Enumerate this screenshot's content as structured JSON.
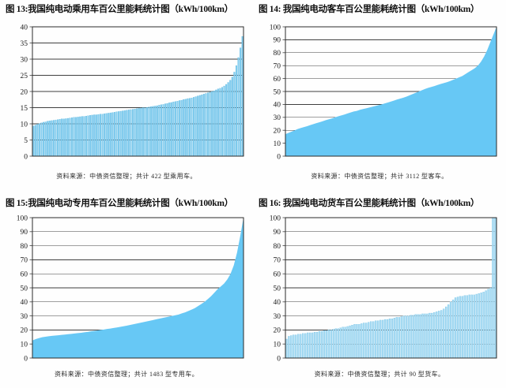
{
  "colors": {
    "grid": "#3f3f3f",
    "border": "#2b2b2b",
    "tick_text": "#1a1a1a"
  },
  "chart_data": [
    {
      "type": "bar",
      "title": "图 13:我国纯电动乘用车百公里能耗统计图（kWh/100km）",
      "source_note": "资料来源：中债资信整理；共计 422 型乘用车。",
      "total_models": 422,
      "unit": "kWh/100km",
      "xlabel": "",
      "ylabel": "kWh/100km",
      "ylim": [
        0,
        40
      ],
      "ytick_step": 5,
      "grid": true,
      "fill": "#85CEF0",
      "stroke": "#54B5E0",
      "values": [
        9.3,
        9.6,
        9.9,
        10.1,
        10.3,
        10.5,
        10.6,
        10.8,
        10.9,
        11,
        11.1,
        11.2,
        11.3,
        11.4,
        11.5,
        11.5,
        11.6,
        11.7,
        11.8,
        11.9,
        12,
        12,
        12.1,
        12.2,
        12.3,
        12.3,
        12.4,
        12.5,
        12.6,
        12.7,
        12.8,
        12.8,
        12.9,
        13,
        13,
        13.1,
        13.2,
        13.3,
        13.4,
        13.5,
        13.6,
        13.7,
        13.8,
        13.9,
        14,
        14.1,
        14.2,
        14.3,
        14.4,
        14.5,
        14.6,
        14.7,
        14.8,
        14.9,
        15,
        15,
        15.1,
        15.2,
        15.3,
        15.4,
        15.5,
        15.6,
        15.8,
        15.9,
        16,
        16.2,
        16.3,
        16.5,
        16.6,
        16.8,
        16.9,
        17,
        17.2,
        17.3,
        17.5,
        17.6,
        17.8,
        17.9,
        18,
        18.2,
        18.4,
        18.6,
        18.8,
        19,
        19.2,
        19.4,
        19.6,
        19.8,
        20,
        20.2,
        20.5,
        20.8,
        21,
        21.3,
        21.7,
        22.2,
        22.8,
        23.5,
        24.5,
        26,
        28,
        30.5,
        33.5,
        37
      ]
    },
    {
      "type": "area",
      "title": "图 14: 我国纯电动客车百公里能耗统计图（kWh/100km）",
      "source_note": "资料来源：中债资信整理；共计 3112 型客车。",
      "total_models": 3112,
      "unit": "kWh/100km",
      "xlabel": "",
      "ylabel": "kWh/100km",
      "ylim": [
        0,
        100
      ],
      "ytick_step": 10,
      "grid": true,
      "fill": "#67C8F5",
      "values": [
        17,
        18,
        19,
        20,
        21,
        21.8,
        22.5,
        23.2,
        24,
        24.8,
        25.5,
        26.2,
        27,
        27.8,
        28.5,
        29.2,
        30,
        30.8,
        31.5,
        32.2,
        33,
        33.8,
        34.5,
        35,
        35.8,
        36.4,
        37,
        37.6,
        38.2,
        38.8,
        39.4,
        40,
        40.8,
        41.5,
        42.2,
        43,
        43.8,
        44.5,
        45.2,
        46,
        47,
        48,
        49,
        50,
        51,
        52,
        52.8,
        53.5,
        54.2,
        55,
        55.8,
        56.5,
        57.2,
        58,
        59,
        60,
        61,
        62,
        63.5,
        65,
        66.5,
        68,
        70,
        73,
        77,
        82,
        88,
        94,
        100
      ]
    },
    {
      "type": "area",
      "title": "图 15:我国纯电动专用车百公里能耗统计图（kWh/100km）",
      "source_note": "资料来源：中债资信整理；共计 1483 型专用车。",
      "total_models": 1483,
      "unit": "kWh/100km",
      "xlabel": "",
      "ylabel": "kWh/100km",
      "ylim": [
        0,
        100
      ],
      "ytick_step": 10,
      "grid": true,
      "fill": "#67C8F5",
      "values": [
        12.5,
        13.5,
        14.2,
        14.8,
        15.2,
        15.5,
        15.8,
        16,
        16.2,
        16.5,
        16.7,
        17,
        17.2,
        17.5,
        17.8,
        18,
        18.3,
        18.6,
        19,
        19.3,
        19.6,
        20,
        20.3,
        20.7,
        21,
        21.4,
        21.8,
        22.2,
        22.6,
        23,
        23.5,
        24,
        24.5,
        25,
        25.5,
        26,
        26.5,
        27,
        27.5,
        28,
        28.5,
        29,
        29.5,
        30,
        30.5,
        31,
        31.8,
        32.5,
        33.5,
        34.5,
        35.5,
        37,
        38.5,
        40,
        42,
        44,
        46.5,
        49,
        51,
        53,
        56,
        60,
        66,
        75,
        87,
        100
      ]
    },
    {
      "type": "bar",
      "title": "图 16: 我国纯电动货车百公里能耗统计图（kWh/100km）",
      "source_note": "资料来源：中债资信整理；共计 90 型货车。",
      "total_models": 90,
      "unit": "kWh/100km",
      "xlabel": "",
      "ylabel": "kWh/100km",
      "ylim": [
        0,
        100
      ],
      "ytick_step": 10,
      "grid": true,
      "fill": "#A9DCF4",
      "stroke": "#6BBEE4",
      "values": [
        13.5,
        15.5,
        16,
        16.5,
        16.5,
        17,
        17,
        17.5,
        17.5,
        18,
        18,
        18,
        18.5,
        18.5,
        19,
        19,
        19.5,
        19.5,
        20,
        20,
        20.5,
        21,
        21,
        21.5,
        22,
        22,
        22.5,
        23,
        23.5,
        24,
        24,
        24,
        24.5,
        25,
        25,
        25.5,
        26,
        26,
        26.5,
        26.5,
        27,
        27,
        27.5,
        27.5,
        28,
        28,
        28.5,
        29,
        29,
        29.5,
        30,
        30,
        30,
        30.5,
        30.5,
        31,
        31,
        31,
        31.5,
        31.5,
        31.5,
        32,
        32,
        32.5,
        33,
        33.5,
        34,
        35,
        36.5,
        38,
        40,
        41.5,
        43,
        43.5,
        44,
        44,
        44.5,
        44.5,
        45,
        45,
        45,
        45.5,
        46,
        46.5,
        47,
        48,
        49,
        50,
        100,
        100
      ]
    }
  ]
}
